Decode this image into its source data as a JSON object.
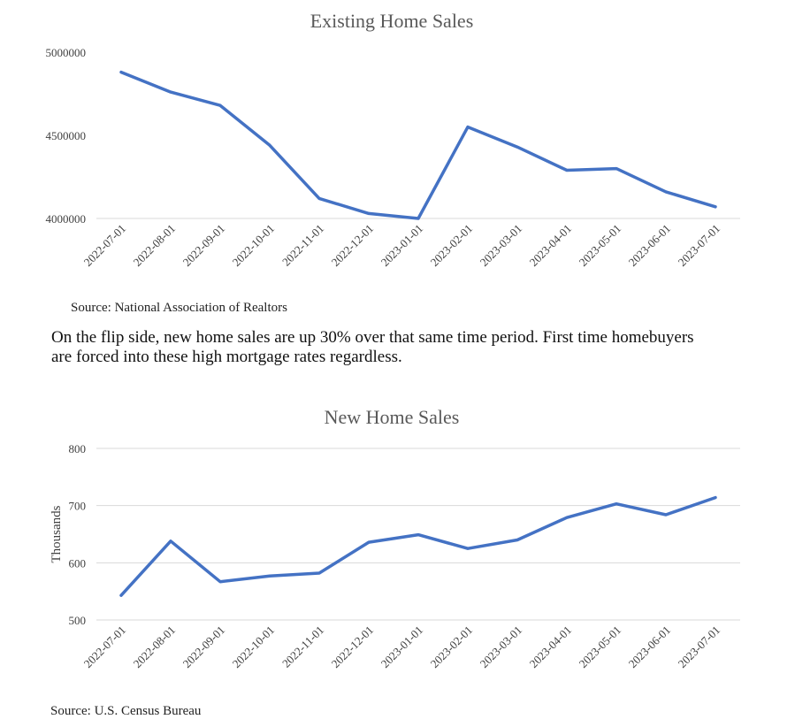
{
  "chart_data": [
    {
      "type": "line",
      "title": "Existing Home Sales",
      "xlabel": "",
      "ylabel": "",
      "categories": [
        "2022-07-01",
        "2022-08-01",
        "2022-09-01",
        "2022-10-01",
        "2022-11-01",
        "2022-12-01",
        "2023-01-01",
        "2023-02-01",
        "2023-03-01",
        "2023-04-01",
        "2023-05-01",
        "2023-06-01",
        "2023-07-01"
      ],
      "series": [
        {
          "values": [
            4880000,
            4760000,
            4680000,
            4440000,
            4120000,
            4030000,
            4000000,
            4550000,
            4430000,
            4290000,
            4300000,
            4160000,
            4070000
          ]
        }
      ],
      "ylim": [
        4000000,
        5000000
      ],
      "yticks": [
        "4000000",
        "4500000",
        "5000000"
      ],
      "ytick_values": [
        4000000,
        4500000,
        5000000
      ],
      "grid": false,
      "line_color": "#4472C4",
      "source": "Source: National Association of Realtors"
    },
    {
      "type": "line",
      "title": "New Home Sales",
      "xlabel": "",
      "ylabel": "Thousands",
      "categories": [
        "2022-07-01",
        "2022-08-01",
        "2022-09-01",
        "2022-10-01",
        "2022-11-01",
        "2022-12-01",
        "2023-01-01",
        "2023-02-01",
        "2023-03-01",
        "2023-04-01",
        "2023-05-01",
        "2023-06-01",
        "2023-07-01"
      ],
      "series": [
        {
          "values": [
            543,
            638,
            567,
            577,
            582,
            636,
            649,
            625,
            640,
            679,
            703,
            684,
            714
          ]
        }
      ],
      "ylim": [
        500,
        800
      ],
      "yticks": [
        "500",
        "600",
        "700",
        "800"
      ],
      "ytick_values": [
        500,
        600,
        700,
        800
      ],
      "grid": true,
      "line_color": "#4472C4",
      "source": "Source: U.S. Census Bureau"
    }
  ],
  "body_text": {
    "line1": "On the flip side, new home sales are up 30% over that same time period. First time homebuyers",
    "line2": "are forced into these high mortgage rates regardless."
  }
}
